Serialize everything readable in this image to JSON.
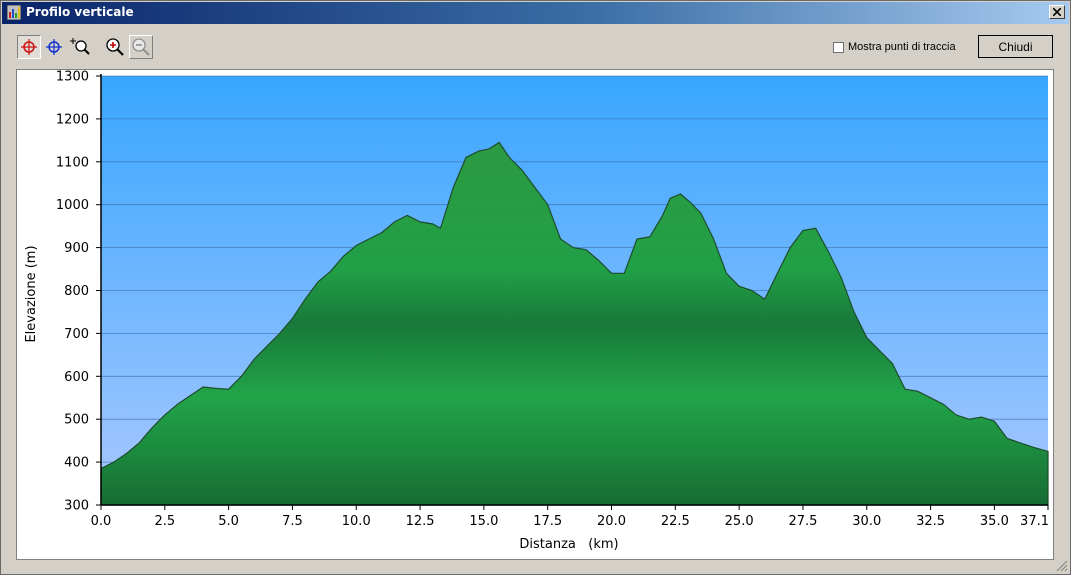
{
  "window": {
    "title": "Profilo verticale",
    "icon": "app-chart-icon"
  },
  "toolbar": {
    "tools": [
      {
        "name": "crosshair-red-tool",
        "icon": "crosshair-red-icon",
        "pressed": true
      },
      {
        "name": "crosshair-blue-tool",
        "icon": "crosshair-blue-icon",
        "pressed": false
      },
      {
        "name": "zoom-select-tool",
        "icon": "zoom-select-icon",
        "pressed": false
      },
      {
        "name": "zoom-in-tool",
        "icon": "zoom-in-icon",
        "pressed": false
      },
      {
        "name": "zoom-out-tool",
        "icon": "zoom-out-icon",
        "pressed": false,
        "disabled": true
      }
    ],
    "show_track_points_label": "Mostra punti di traccia",
    "show_track_points_checked": false,
    "close_label": "Chiudi"
  },
  "chart_data": {
    "type": "area",
    "xlabel": "Distanza   (km)",
    "ylabel": "Elevazione (m)",
    "xlim": [
      0,
      37.1
    ],
    "ylim": [
      300,
      1300
    ],
    "xticks": [
      "0.0",
      "2.5",
      "5.0",
      "7.5",
      "10.0",
      "12.5",
      "15.0",
      "17.5",
      "20.0",
      "22.5",
      "25.0",
      "27.5",
      "30.0",
      "32.5",
      "35.0",
      "37.1"
    ],
    "xtick_values": [
      0,
      2.5,
      5,
      7.5,
      10,
      12.5,
      15,
      17.5,
      20,
      22.5,
      25,
      27.5,
      30,
      32.5,
      35,
      37.1
    ],
    "yticks": [
      300,
      400,
      500,
      600,
      700,
      800,
      900,
      1000,
      1100,
      1200,
      1300
    ],
    "grid": true,
    "colors": {
      "sky_top": "#38a6ff",
      "sky_bottom": "#a9c8ff",
      "fill": "#2a9a40",
      "fill_dark": "#18743a",
      "line": "#1c4d2c"
    },
    "x": [
      0,
      0.5,
      1,
      1.5,
      2,
      2.5,
      3,
      3.5,
      4,
      4.5,
      5,
      5.5,
      6,
      6.5,
      7,
      7.5,
      8,
      8.5,
      9,
      9.5,
      10,
      10.5,
      11,
      11.5,
      12,
      12.5,
      13,
      13.3,
      13.8,
      14.3,
      14.8,
      15.2,
      15.6,
      16,
      16.5,
      17,
      17.5,
      18,
      18.5,
      19,
      19.5,
      20,
      20.5,
      21,
      21.5,
      22,
      22.3,
      22.7,
      23.1,
      23.5,
      24,
      24.5,
      25,
      25.5,
      26,
      26.5,
      27,
      27.5,
      28,
      28.5,
      29,
      29.5,
      30,
      30.5,
      31,
      31.5,
      32,
      32.5,
      33,
      33.5,
      34,
      34.5,
      35,
      35.5,
      36,
      36.5,
      37.1
    ],
    "y": [
      385,
      400,
      420,
      445,
      480,
      510,
      535,
      555,
      575,
      572,
      570,
      600,
      640,
      670,
      700,
      735,
      780,
      820,
      845,
      880,
      905,
      920,
      935,
      960,
      975,
      960,
      955,
      945,
      1040,
      1110,
      1125,
      1130,
      1145,
      1110,
      1080,
      1040,
      1000,
      920,
      900,
      895,
      870,
      840,
      840,
      920,
      925,
      975,
      1015,
      1025,
      1005,
      980,
      920,
      840,
      810,
      800,
      780,
      840,
      900,
      940,
      945,
      890,
      830,
      750,
      690,
      660,
      630,
      570,
      565,
      550,
      535,
      510,
      500,
      505,
      495,
      455,
      445,
      435,
      425
    ]
  }
}
